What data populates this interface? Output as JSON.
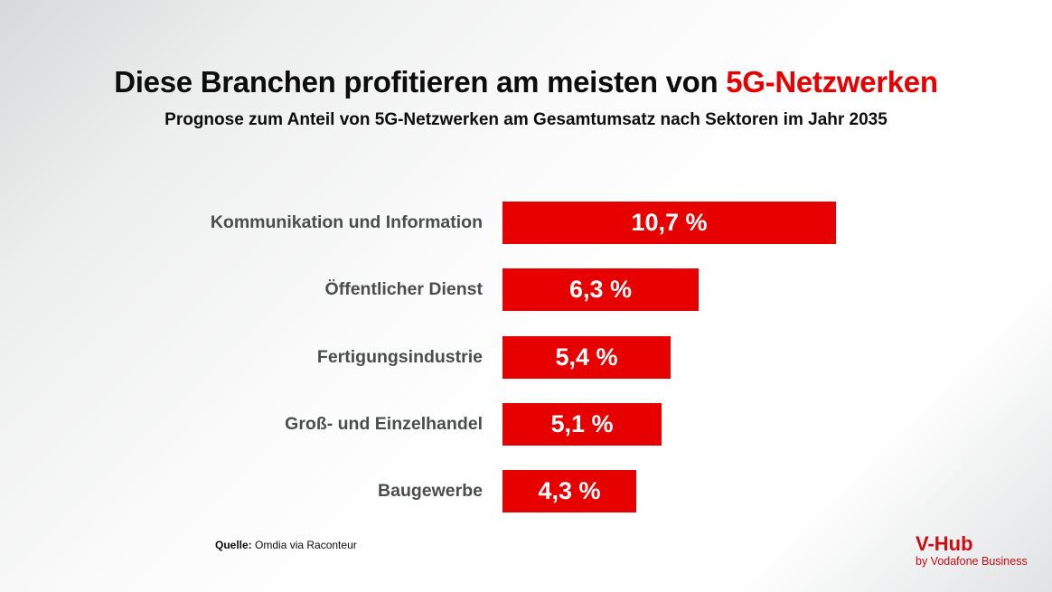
{
  "page": {
    "title_black": "Diese Branchen profitieren am meisten von ",
    "title_red": "5G-Netzwerken",
    "subtitle": "Prognose zum Anteil von 5G-Netzwerken am Gesamtumsatz nach Sektoren im Jahr 2035",
    "source_label": "Quelle:",
    "source_text": " Omdia via Raconteur",
    "logo_title": "V-Hub",
    "logo_subtitle": "by Vodafone Business"
  },
  "colors": {
    "bar_red": "#e60000",
    "title_red": "#e60000",
    "label_gray": "#4a4d4e",
    "logo_red": "#d10a10",
    "value_text": "#ffffff"
  },
  "chart_data": {
    "type": "bar",
    "orientation": "horizontal",
    "title": "Diese Branchen profitieren am meisten von 5G-Netzwerken",
    "subtitle": "Prognose zum Anteil von 5G-Netzwerken am Gesamtumsatz nach Sektoren im Jahr 2035",
    "categories": [
      "Kommunikation und Information",
      "Öffentlicher Dienst",
      "Fertigungsindustrie",
      "Groß- und Einzelhandel",
      "Baugewerbe"
    ],
    "values": [
      10.7,
      6.3,
      5.4,
      5.1,
      4.3
    ],
    "display_values": [
      "10,7 %",
      "6,3 %",
      "5,4 %",
      "5,1 %",
      "4,3 %"
    ],
    "unit": "%",
    "xlim": [
      0,
      10.7
    ],
    "bar_color": "#e60000",
    "value_label_position": "inside-center",
    "grid": false,
    "legend": false,
    "source": "Quelle: Omdia via Raconteur"
  }
}
